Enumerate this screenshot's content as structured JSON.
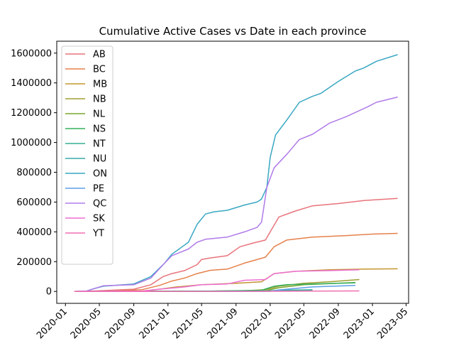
{
  "chart_data": {
    "type": "line",
    "title": "Cumulative Active Cases vs Date in each province",
    "xlabel": "",
    "ylabel": "",
    "x_ticks": [
      "2020-01",
      "2020-05",
      "2020-09",
      "2021-01",
      "2021-05",
      "2021-09",
      "2022-01",
      "2022-05",
      "2022-09",
      "2023-01",
      "2023-05"
    ],
    "y_ticks": [
      "0",
      "200000",
      "400000",
      "600000",
      "800000",
      "1000000",
      "1200000",
      "1400000",
      "1600000"
    ],
    "xlim": [
      "2019-12-01",
      "2023-05-10"
    ],
    "ylim": [
      -80000,
      1680000
    ],
    "grid": false,
    "legend_position": "upper-left",
    "series": [
      {
        "name": "AB",
        "color": "#e8737b",
        "points": [
          [
            "2020-02-01",
            0
          ],
          [
            "2020-04-01",
            2000
          ],
          [
            "2020-06-01",
            7000
          ],
          [
            "2020-09-01",
            15000
          ],
          [
            "2020-11-01",
            45000
          ],
          [
            "2020-12-15",
            100000
          ],
          [
            "2021-01-15",
            120000
          ],
          [
            "2021-03-01",
            140000
          ],
          [
            "2021-04-15",
            180000
          ],
          [
            "2021-05-01",
            215000
          ],
          [
            "2021-06-01",
            225000
          ],
          [
            "2021-08-01",
            240000
          ],
          [
            "2021-09-15",
            300000
          ],
          [
            "2021-11-01",
            325000
          ],
          [
            "2021-12-15",
            345000
          ],
          [
            "2022-01-01",
            400000
          ],
          [
            "2022-02-01",
            500000
          ],
          [
            "2022-04-01",
            540000
          ],
          [
            "2022-06-01",
            575000
          ],
          [
            "2022-09-01",
            590000
          ],
          [
            "2022-12-01",
            610000
          ],
          [
            "2023-04-01",
            625000
          ]
        ]
      },
      {
        "name": "BC",
        "color": "#e5814b",
        "points": [
          [
            "2020-02-01",
            0
          ],
          [
            "2020-04-01",
            1000
          ],
          [
            "2020-07-01",
            4000
          ],
          [
            "2020-10-01",
            12000
          ],
          [
            "2020-12-01",
            40000
          ],
          [
            "2021-01-15",
            70000
          ],
          [
            "2021-03-01",
            90000
          ],
          [
            "2021-04-15",
            120000
          ],
          [
            "2021-06-01",
            142000
          ],
          [
            "2021-08-01",
            150000
          ],
          [
            "2021-10-01",
            190000
          ],
          [
            "2021-12-15",
            230000
          ],
          [
            "2022-01-15",
            300000
          ],
          [
            "2022-03-01",
            345000
          ],
          [
            "2022-06-01",
            365000
          ],
          [
            "2022-10-01",
            375000
          ],
          [
            "2023-01-01",
            385000
          ],
          [
            "2023-04-01",
            390000
          ]
        ]
      },
      {
        "name": "MB",
        "color": "#c4952f",
        "points": [
          [
            "2020-02-01",
            0
          ],
          [
            "2020-10-01",
            2000
          ],
          [
            "2020-12-01",
            15000
          ],
          [
            "2021-02-01",
            30000
          ],
          [
            "2021-05-01",
            45000
          ],
          [
            "2021-09-01",
            55000
          ],
          [
            "2021-12-01",
            65000
          ],
          [
            "2022-01-15",
            120000
          ],
          [
            "2022-04-01",
            135000
          ],
          [
            "2022-08-01",
            145000
          ],
          [
            "2022-12-01",
            150000
          ],
          [
            "2023-04-01",
            152000
          ]
        ]
      },
      {
        "name": "NB",
        "color": "#9e9e32",
        "points": [
          [
            "2020-02-01",
            0
          ],
          [
            "2021-06-01",
            2000
          ],
          [
            "2021-10-01",
            5000
          ],
          [
            "2021-12-15",
            12000
          ],
          [
            "2022-02-01",
            35000
          ],
          [
            "2022-05-01",
            55000
          ],
          [
            "2022-08-01",
            65000
          ],
          [
            "2022-11-15",
            80000
          ]
        ]
      },
      {
        "name": "NL",
        "color": "#79a72f",
        "points": [
          [
            "2020-02-01",
            0
          ],
          [
            "2021-06-01",
            1000
          ],
          [
            "2021-12-15",
            5000
          ],
          [
            "2022-02-01",
            25000
          ],
          [
            "2022-05-01",
            45000
          ],
          [
            "2022-08-01",
            52000
          ],
          [
            "2022-11-01",
            60000
          ]
        ]
      },
      {
        "name": "NS",
        "color": "#33b05c",
        "points": [
          [
            "2020-02-01",
            0
          ],
          [
            "2021-06-01",
            2000
          ],
          [
            "2021-12-01",
            8000
          ],
          [
            "2022-01-15",
            35000
          ],
          [
            "2022-03-01",
            45000
          ],
          [
            "2022-06-01",
            50000
          ],
          [
            "2022-09-01",
            55000
          ],
          [
            "2022-11-01",
            58000
          ]
        ]
      },
      {
        "name": "NT",
        "color": "#36ad93",
        "points": [
          [
            "2020-02-01",
            0
          ],
          [
            "2021-06-01",
            500
          ],
          [
            "2021-12-01",
            2000
          ],
          [
            "2022-02-01",
            8000
          ],
          [
            "2022-06-01",
            11000
          ]
        ]
      },
      {
        "name": "NU",
        "color": "#38a9a9",
        "points": [
          [
            "2020-02-01",
            0
          ],
          [
            "2021-06-01",
            500
          ],
          [
            "2021-12-01",
            1500
          ],
          [
            "2022-02-01",
            3000
          ],
          [
            "2022-06-01",
            4000
          ]
        ]
      },
      {
        "name": "ON",
        "color": "#39a7c2",
        "points": [
          [
            "2020-02-01",
            0
          ],
          [
            "2020-03-15",
            2000
          ],
          [
            "2020-04-15",
            20000
          ],
          [
            "2020-05-15",
            35000
          ],
          [
            "2020-09-01",
            50000
          ],
          [
            "2020-11-01",
            100000
          ],
          [
            "2020-12-20",
            190000
          ],
          [
            "2021-01-15",
            250000
          ],
          [
            "2021-03-15",
            330000
          ],
          [
            "2021-04-15",
            450000
          ],
          [
            "2021-05-15",
            520000
          ],
          [
            "2021-06-15",
            535000
          ],
          [
            "2021-08-01",
            545000
          ],
          [
            "2021-10-01",
            580000
          ],
          [
            "2021-11-15",
            600000
          ],
          [
            "2021-12-01",
            620000
          ],
          [
            "2021-12-20",
            700000
          ],
          [
            "2022-01-01",
            900000
          ],
          [
            "2022-01-20",
            1050000
          ],
          [
            "2022-03-01",
            1150000
          ],
          [
            "2022-04-15",
            1270000
          ],
          [
            "2022-06-01",
            1310000
          ],
          [
            "2022-07-01",
            1330000
          ],
          [
            "2022-08-01",
            1370000
          ],
          [
            "2022-09-01",
            1410000
          ],
          [
            "2022-11-01",
            1480000
          ],
          [
            "2022-12-01",
            1500000
          ],
          [
            "2023-01-15",
            1545000
          ],
          [
            "2023-04-01",
            1590000
          ]
        ]
      },
      {
        "name": "PE",
        "color": "#5c9ee8",
        "points": [
          [
            "2020-02-01",
            0
          ],
          [
            "2021-06-01",
            200
          ],
          [
            "2022-01-01",
            1000
          ],
          [
            "2022-02-01",
            10000
          ],
          [
            "2022-06-01",
            30000
          ],
          [
            "2022-11-01",
            40000
          ]
        ]
      },
      {
        "name": "QC",
        "color": "#b07be8",
        "points": [
          [
            "2020-02-01",
            0
          ],
          [
            "2020-03-15",
            2000
          ],
          [
            "2020-04-15",
            20000
          ],
          [
            "2020-05-15",
            38000
          ],
          [
            "2020-09-01",
            45000
          ],
          [
            "2020-11-01",
            90000
          ],
          [
            "2020-12-20",
            190000
          ],
          [
            "2021-01-15",
            240000
          ],
          [
            "2021-03-15",
            285000
          ],
          [
            "2021-04-15",
            330000
          ],
          [
            "2021-05-15",
            350000
          ],
          [
            "2021-08-01",
            365000
          ],
          [
            "2021-10-01",
            400000
          ],
          [
            "2021-11-15",
            430000
          ],
          [
            "2021-12-01",
            465000
          ],
          [
            "2021-12-20",
            700000
          ],
          [
            "2022-01-15",
            830000
          ],
          [
            "2022-03-01",
            920000
          ],
          [
            "2022-04-15",
            1020000
          ],
          [
            "2022-06-01",
            1055000
          ],
          [
            "2022-08-01",
            1130000
          ],
          [
            "2022-10-01",
            1175000
          ],
          [
            "2022-12-15",
            1240000
          ],
          [
            "2023-01-15",
            1270000
          ],
          [
            "2023-04-01",
            1305000
          ]
        ]
      },
      {
        "name": "SK",
        "color": "#ee6fd2",
        "points": [
          [
            "2020-02-01",
            0
          ],
          [
            "2020-10-01",
            3000
          ],
          [
            "2020-12-01",
            15000
          ],
          [
            "2021-03-01",
            30000
          ],
          [
            "2021-05-01",
            45000
          ],
          [
            "2021-08-01",
            50000
          ],
          [
            "2021-10-01",
            75000
          ],
          [
            "2021-12-15",
            80000
          ],
          [
            "2022-01-15",
            120000
          ],
          [
            "2022-04-01",
            135000
          ],
          [
            "2022-08-01",
            140000
          ],
          [
            "2022-11-15",
            145000
          ]
        ]
      },
      {
        "name": "YT",
        "color": "#f06fb3",
        "points": [
          [
            "2020-02-01",
            0
          ],
          [
            "2021-06-01",
            300
          ],
          [
            "2022-01-01",
            1000
          ],
          [
            "2022-06-01",
            2500
          ],
          [
            "2022-11-15",
            3500
          ]
        ]
      }
    ]
  }
}
